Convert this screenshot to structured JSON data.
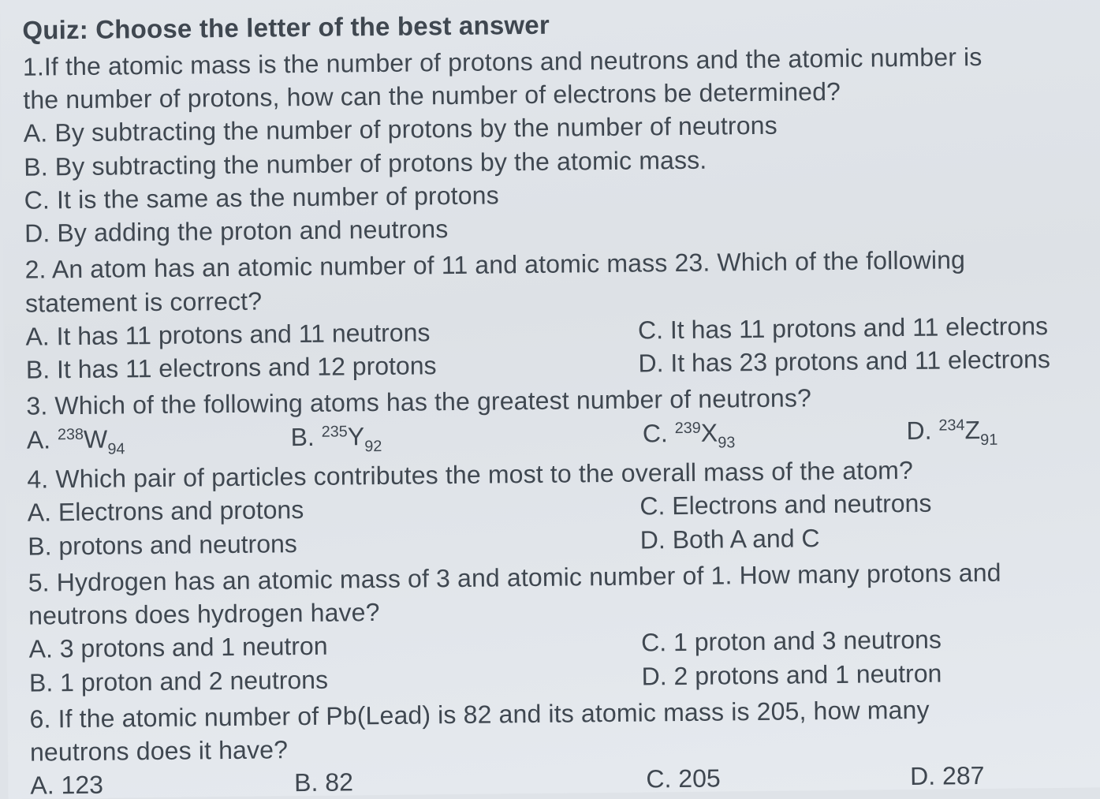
{
  "colors": {
    "text": "#3f4750",
    "background": "#e0e4e9"
  },
  "typography": {
    "family": "Arial, Helvetica, sans-serif",
    "title_fontsize": 33,
    "body_fontsize": 32,
    "title_weight": 600,
    "body_weight": 400,
    "line_height": 1.32
  },
  "quiz": {
    "title": "Quiz: Choose the letter of the best answer",
    "questions": [
      {
        "number": "1",
        "stem_lines": [
          "1.If the atomic mass is the number of protons and neutrons and the atomic number is",
          "the number of protons, how can the number of electrons be determined?"
        ],
        "options_layout": "stack",
        "options": [
          "A. By subtracting the number of protons by the number of neutrons",
          "B. By subtracting the number of protons by the atomic mass.",
          "C. It is the same as the number of protons",
          "D. By adding the proton and neutrons"
        ]
      },
      {
        "number": "2",
        "stem_lines": [
          "2. An atom has an atomic number of 11 and atomic mass 23. Which of the following",
          "statement is correct?"
        ],
        "options_layout": "two-col-58-42",
        "options": [
          "A. It has 11 protons and 11 neutrons",
          "C. It has 11 protons and 11 electrons",
          "B. It has 11 electrons and 12 protons",
          "D. It has 23 protons and 11 electrons"
        ]
      },
      {
        "number": "3",
        "stem_lines": [
          "3. Which of the following atoms has the greatest number of neutrons?"
        ],
        "options_layout": "four-col",
        "options_rich": [
          {
            "prefix": "A. ",
            "sup": "238",
            "sym": "W",
            "sub": "94"
          },
          {
            "prefix": "B. ",
            "sup": "235",
            "sym": "Y",
            "sub": "92"
          },
          {
            "prefix": "C. ",
            "sup": "239",
            "sym": "X",
            "sub": "93"
          },
          {
            "prefix": "D. ",
            "sup": "234",
            "sym": "Z",
            "sub": "91"
          }
        ]
      },
      {
        "number": "4",
        "stem_lines": [
          "4. Which pair of particles contributes the most to the overall mass of the atom?"
        ],
        "options_layout": "two-col-58-42",
        "options": [
          "A. Electrons and protons",
          "C. Electrons and neutrons",
          "B. protons and neutrons",
          "D. Both A and C"
        ]
      },
      {
        "number": "5",
        "stem_lines": [
          "5. Hydrogen has an atomic mass of 3 and atomic number of 1. How many protons and",
          "neutrons does hydrogen have?"
        ],
        "options_layout": "two-col-58-42",
        "options": [
          "A. 3 protons and 1 neutron",
          "C. 1 proton and 3 neutrons",
          "B. 1 proton and 2 neutrons",
          "D. 2 protons and 1 neutron"
        ]
      },
      {
        "number": "6",
        "stem_lines": [
          "6. If the atomic number of Pb(Lead) is 82 and its atomic mass is 205, how many",
          "neutrons does it have?"
        ],
        "options_layout": "four-col",
        "options": [
          "A. 123",
          "B. 82",
          "C. 205",
          "D. 287"
        ]
      }
    ]
  }
}
